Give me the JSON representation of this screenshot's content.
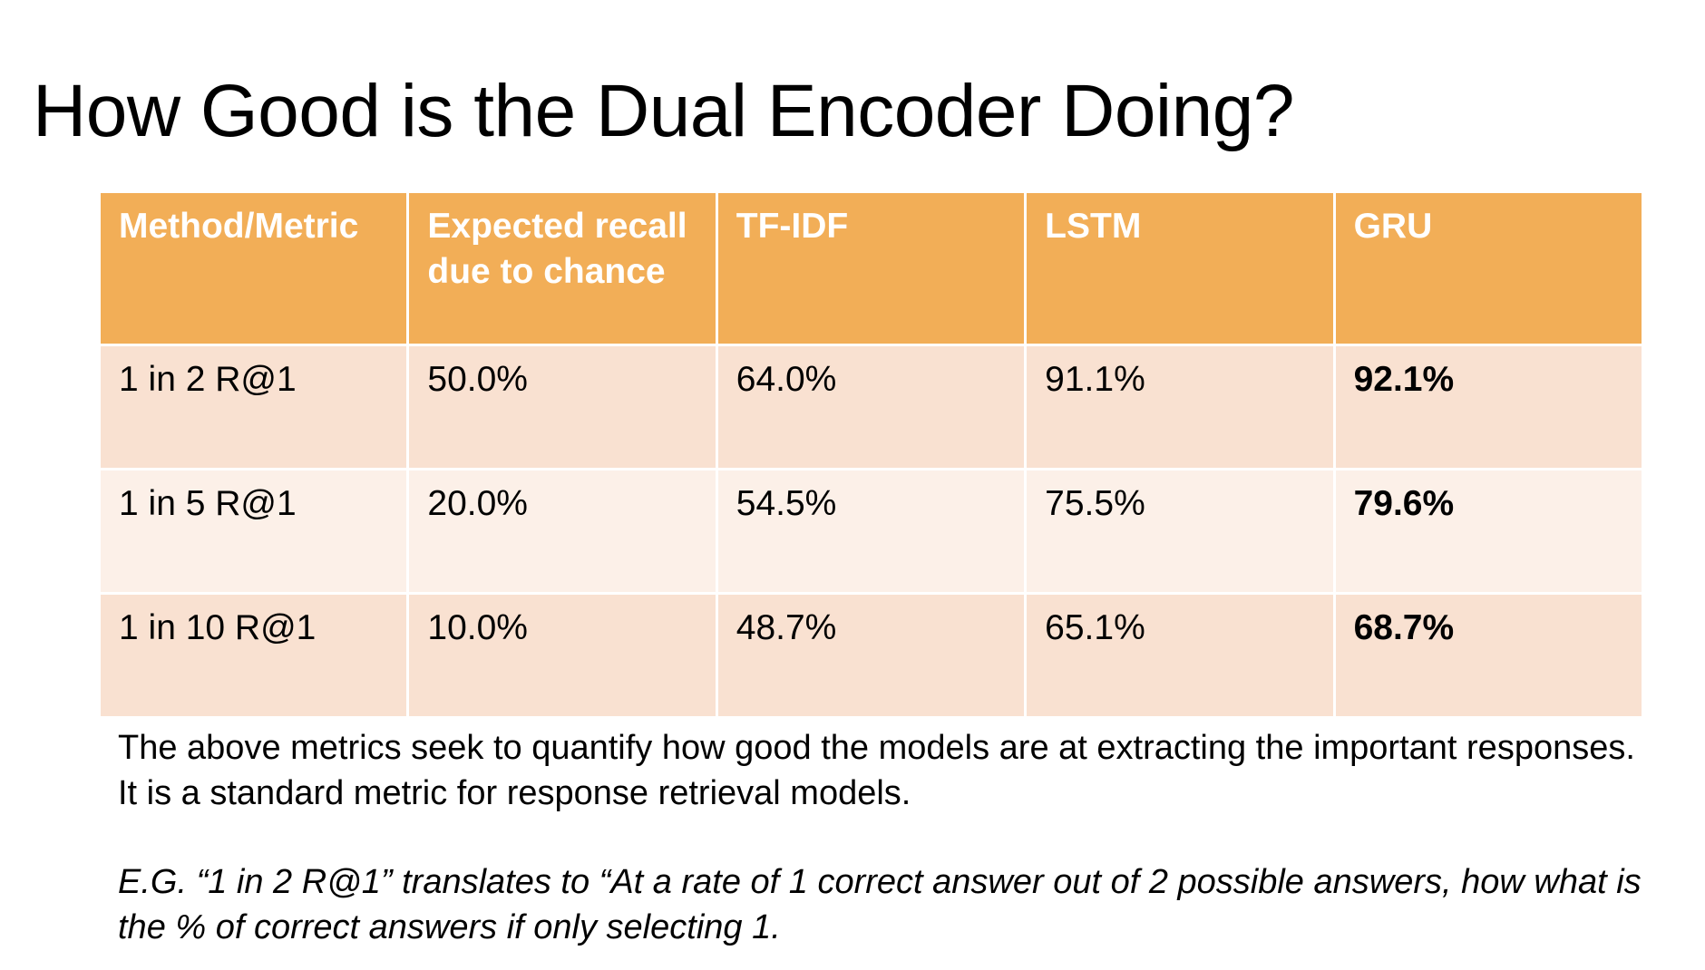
{
  "title": "How Good is the Dual Encoder Doing?",
  "table": {
    "headers": [
      "Method/Metric",
      "Expected recall due to chance",
      "TF-IDF",
      "LSTM",
      "GRU"
    ],
    "rows": [
      [
        "1 in 2 R@1",
        "50.0%",
        "64.0%",
        "91.1%",
        "92.1%"
      ],
      [
        "1 in 5 R@1",
        "20.0%",
        "54.5%",
        "75.5%",
        "79.6%"
      ],
      [
        "1 in 10 R@1",
        "10.0%",
        "48.7%",
        "65.1%",
        "68.7%"
      ]
    ]
  },
  "note": "The above metrics seek to quantify how good the models are at extracting the important responses. It is a standard metric for response retrieval models.",
  "example": "E.G. “1 in 2 R@1” translates to “At a rate of 1 correct answer out of 2 possible answers, how what is the % of correct answers if only selecting 1.",
  "colors": {
    "header_bg": "#f2ae57",
    "row_dark_bg": "#f9e1d1",
    "row_light_bg": "#fcf0e8"
  }
}
